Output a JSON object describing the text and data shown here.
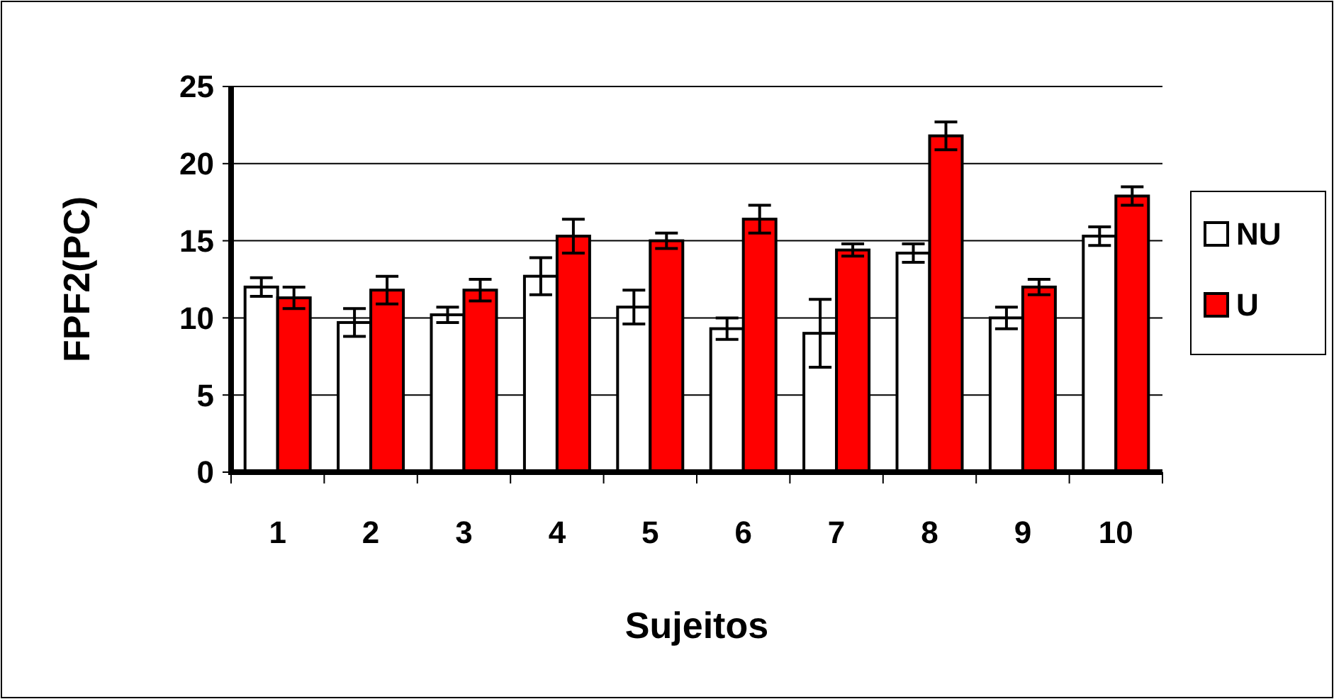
{
  "chart_data": {
    "type": "bar",
    "xlabel": "Sujeitos",
    "ylabel": "FPF2(PC)",
    "categories": [
      "1",
      "2",
      "3",
      "4",
      "5",
      "6",
      "7",
      "8",
      "9",
      "10"
    ],
    "series": [
      {
        "name": "NU",
        "color": "#ffffff",
        "values": [
          12.0,
          9.7,
          10.2,
          12.7,
          10.7,
          9.3,
          9.0,
          14.2,
          10.0,
          15.3
        ],
        "errors": [
          0.6,
          0.9,
          0.5,
          1.2,
          1.1,
          0.7,
          2.2,
          0.6,
          0.7,
          0.6
        ]
      },
      {
        "name": "U",
        "color": "#ff0000",
        "values": [
          11.3,
          11.8,
          11.8,
          15.3,
          15.0,
          16.4,
          14.4,
          21.8,
          12.0,
          17.9
        ],
        "errors": [
          0.7,
          0.9,
          0.7,
          1.1,
          0.5,
          0.9,
          0.4,
          0.9,
          0.5,
          0.6
        ]
      }
    ],
    "ylim": [
      0,
      25
    ],
    "yticks": [
      0,
      5,
      10,
      15,
      20,
      25
    ],
    "grid": "y",
    "legend": "right"
  }
}
